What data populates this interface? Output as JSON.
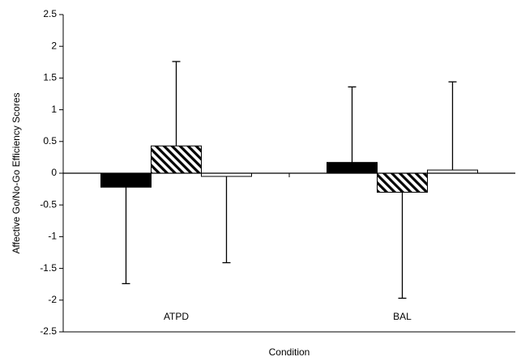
{
  "chart_data": {
    "type": "bar",
    "x_label": "Condition",
    "y_label": "Affective Go/No-Go Efficiency Scores",
    "categories": [
      "ATPD",
      "BAL"
    ],
    "series": [
      {
        "color": "#000000",
        "values": [
          -0.22,
          0.17
        ],
        "errors": [
          1.52,
          1.19
        ]
      },
      {
        "color": "#000000",
        "hatch": true,
        "values": [
          0.43,
          -0.3
        ],
        "errors": [
          1.33,
          1.67
        ]
      },
      {
        "color": "#ffffff",
        "values": [
          -0.05,
          0.05
        ],
        "errors": [
          1.36,
          1.39
        ]
      }
    ],
    "ylim": [
      -2.5,
      2.5
    ],
    "yticks": [
      -2.5,
      -2,
      -1.5,
      -1,
      -0.5,
      0,
      0.5,
      1,
      1.5,
      2,
      2.5
    ]
  }
}
